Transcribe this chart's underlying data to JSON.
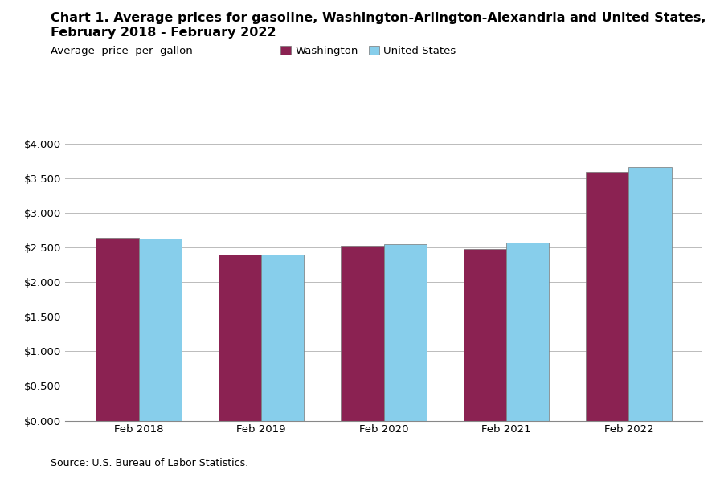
{
  "title_line1": "Chart 1. Average prices for gasoline, Washington-Arlington-Alexandria and United States,",
  "title_line2": "February 2018 - February 2022",
  "ylabel": "Average  price  per  gallon",
  "categories": [
    "Feb 2018",
    "Feb 2019",
    "Feb 2020",
    "Feb 2021",
    "Feb 2022"
  ],
  "washington": [
    2.635,
    2.4,
    2.52,
    2.48,
    3.59
  ],
  "united_states": [
    2.63,
    2.395,
    2.54,
    2.57,
    3.66
  ],
  "washington_color": "#8B2252",
  "us_color": "#87CEEB",
  "bar_edge_color": "#777777",
  "ylim": [
    0,
    4.0
  ],
  "yticks": [
    0.0,
    0.5,
    1.0,
    1.5,
    2.0,
    2.5,
    3.0,
    3.5,
    4.0
  ],
  "legend_washington": "Washington",
  "legend_us": "United States",
  "source_text": "Source: U.S. Bureau of Labor Statistics.",
  "background_color": "#ffffff",
  "grid_color": "#bbbbbb",
  "title_fontsize": 11.5,
  "axis_fontsize": 9.5,
  "tick_fontsize": 9.5,
  "source_fontsize": 9
}
